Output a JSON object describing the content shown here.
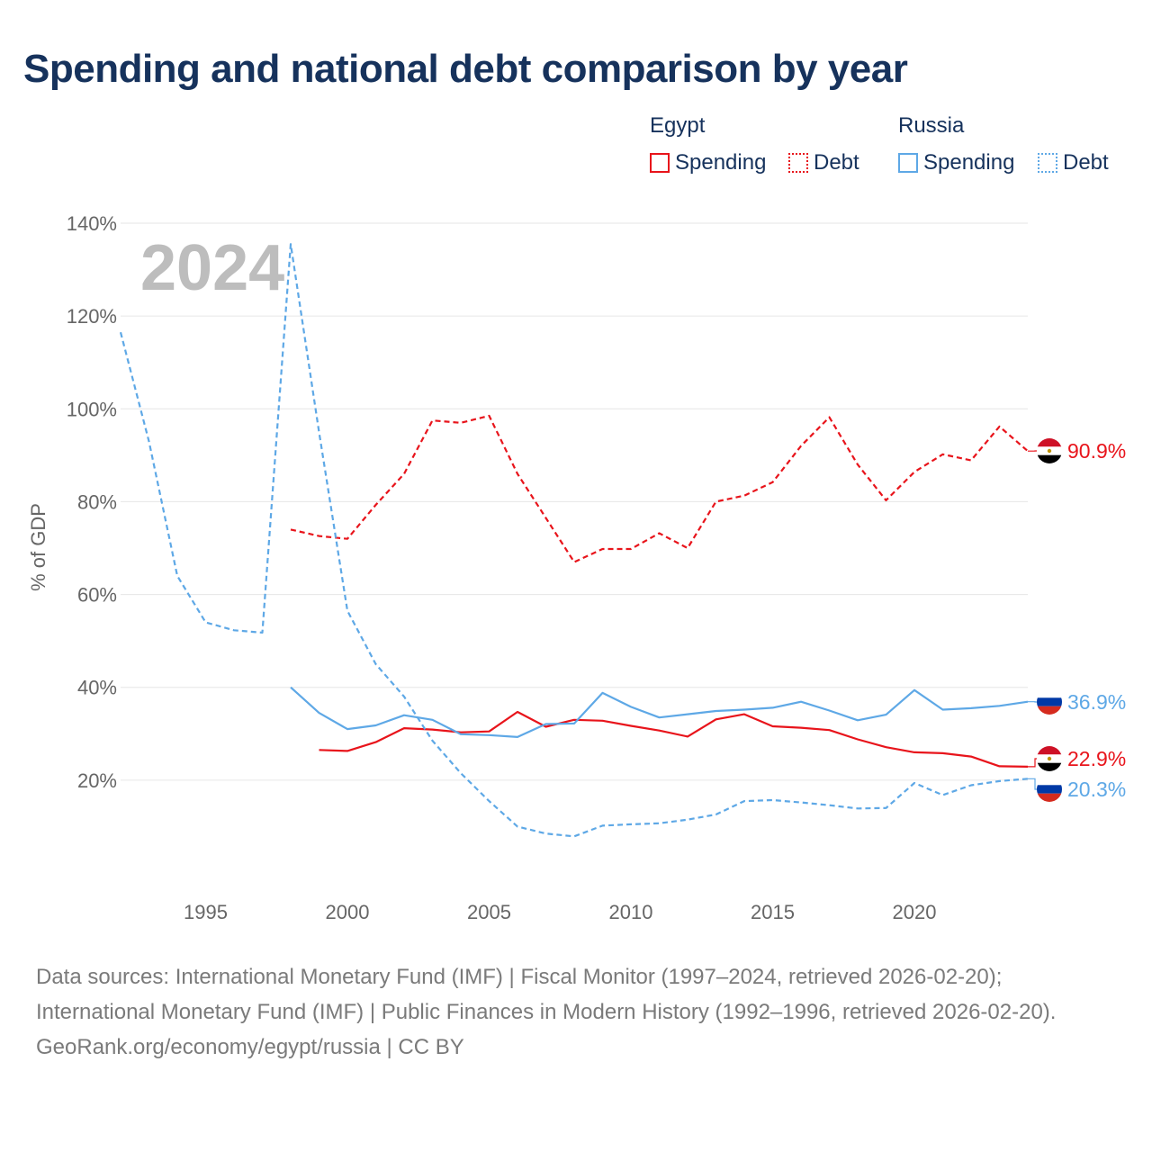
{
  "title": "Spending and national debt comparison by year",
  "legend": {
    "groups": [
      {
        "name": "Egypt",
        "items": [
          {
            "label": "Spending",
            "style": "solid"
          },
          {
            "label": "Debt",
            "style": "dotted"
          }
        ]
      },
      {
        "name": "Russia",
        "items": [
          {
            "label": "Spending",
            "style": "solid"
          },
          {
            "label": "Debt",
            "style": "dotted"
          }
        ]
      }
    ]
  },
  "watermark_year": "2024",
  "colors": {
    "egypt": "#e8141b",
    "russia": "#5ea8e6",
    "title": "#16325c",
    "axis_text": "#666666",
    "grid": "#e6e6e6"
  },
  "chart_data": {
    "type": "line",
    "ylabel": "% of GDP",
    "xlim": [
      1992,
      2024
    ],
    "ylim": [
      0,
      140
    ],
    "yticks": [
      20,
      40,
      60,
      80,
      100,
      120,
      140
    ],
    "ytick_labels": [
      "20%",
      "40%",
      "60%",
      "80%",
      "100%",
      "120%",
      "140%"
    ],
    "xticks": [
      1995,
      2000,
      2005,
      2010,
      2015,
      2020
    ],
    "xtick_labels": [
      "1995",
      "2000",
      "2005",
      "2010",
      "2015",
      "2020"
    ],
    "series": [
      {
        "name": "Egypt Debt",
        "country": "Egypt",
        "style": "dashed",
        "color": "#e8141b",
        "x": [
          1998,
          1999,
          2000,
          2001,
          2002,
          2003,
          2004,
          2005,
          2006,
          2007,
          2008,
          2009,
          2010,
          2011,
          2012,
          2013,
          2014,
          2015,
          2016,
          2017,
          2018,
          2019,
          2020,
          2021,
          2022,
          2023,
          2024
        ],
        "values": [
          74.0,
          72.6,
          72.0,
          79.3,
          86.0,
          97.5,
          97.0,
          98.5,
          86.0,
          76.5,
          67.0,
          69.8,
          69.8,
          73.2,
          70.0,
          80.0,
          81.3,
          84.2,
          92.0,
          98.2,
          88.0,
          80.3,
          86.4,
          90.2,
          88.9,
          96.2,
          90.9
        ],
        "end_label": "90.9%"
      },
      {
        "name": "Egypt Spending",
        "country": "Egypt",
        "style": "solid",
        "color": "#e8141b",
        "x": [
          1999,
          2000,
          2001,
          2002,
          2003,
          2004,
          2005,
          2006,
          2007,
          2008,
          2009,
          2010,
          2011,
          2012,
          2013,
          2014,
          2015,
          2016,
          2017,
          2018,
          2019,
          2020,
          2021,
          2022,
          2023,
          2024
        ],
        "values": [
          26.5,
          26.3,
          28.2,
          31.2,
          30.9,
          30.3,
          30.5,
          34.7,
          31.5,
          33.0,
          32.8,
          31.7,
          30.7,
          29.4,
          33.1,
          34.2,
          31.6,
          31.3,
          30.8,
          28.8,
          27.1,
          26.0,
          25.8,
          25.1,
          23.0,
          22.9
        ],
        "end_label": "22.9%"
      },
      {
        "name": "Russia Spending",
        "country": "Russia",
        "style": "solid",
        "color": "#5ea8e6",
        "x": [
          1998,
          1999,
          2000,
          2001,
          2002,
          2003,
          2004,
          2005,
          2006,
          2007,
          2008,
          2009,
          2010,
          2011,
          2012,
          2013,
          2014,
          2015,
          2016,
          2017,
          2018,
          2019,
          2020,
          2021,
          2022,
          2023,
          2024
        ],
        "values": [
          40.0,
          34.5,
          31.0,
          31.8,
          34.0,
          33.0,
          29.9,
          29.7,
          29.3,
          32.1,
          32.2,
          38.8,
          35.8,
          33.5,
          34.2,
          34.9,
          35.2,
          35.6,
          36.9,
          35.0,
          32.9,
          34.1,
          39.4,
          35.2,
          35.5,
          36.0,
          36.9
        ],
        "end_label": "36.9%"
      },
      {
        "name": "Russia Debt",
        "country": "Russia",
        "style": "dashed",
        "color": "#5ea8e6",
        "x": [
          1992,
          1993,
          1994,
          1995,
          1996,
          1997,
          1998,
          1999,
          2000,
          2001,
          2002,
          2003,
          2004,
          2005,
          2006,
          2007,
          2008,
          2009,
          2010,
          2011,
          2012,
          2013,
          2014,
          2015,
          2016,
          2017,
          2018,
          2019,
          2020,
          2021,
          2022,
          2023,
          2024
        ],
        "values": [
          116.5,
          93.0,
          64.0,
          54.0,
          52.3,
          51.8,
          135.5,
          95.0,
          56.5,
          45.0,
          38.0,
          28.5,
          21.5,
          15.5,
          10.0,
          8.5,
          7.9,
          10.2,
          10.5,
          10.7,
          11.5,
          12.6,
          15.5,
          15.7,
          15.2,
          14.6,
          13.9,
          14.0,
          19.4,
          16.8,
          18.9,
          19.8,
          20.3
        ],
        "end_label": "20.3%"
      }
    ]
  },
  "footer": {
    "sources": "Data sources: International Monetary Fund (IMF) | Fiscal Monitor (1997–2024, retrieved 2026-02-20); International Monetary Fund (IMF) | Public Finances in Modern History (1992–1996, retrieved 2026-02-20).",
    "attribution": "GeoRank.org/economy/egypt/russia | CC BY"
  }
}
